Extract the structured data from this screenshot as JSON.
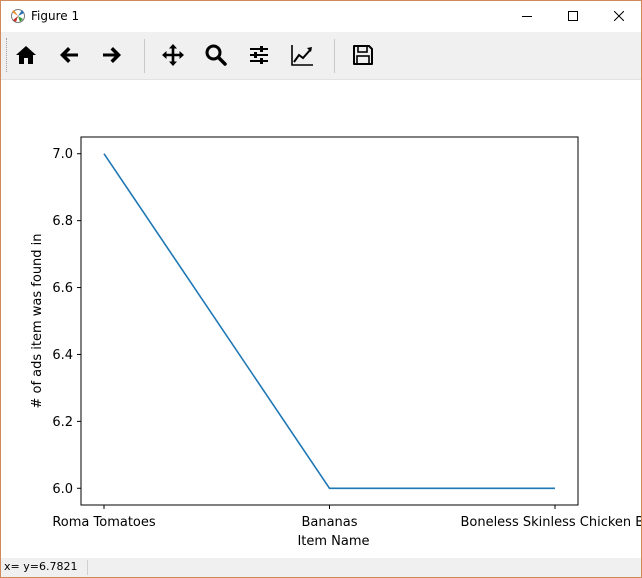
{
  "window": {
    "title": "Figure 1"
  },
  "toolbar": {
    "buttons": [
      {
        "name": "home",
        "icon": "home-icon"
      },
      {
        "name": "back",
        "icon": "arrow-left-icon"
      },
      {
        "name": "forward",
        "icon": "arrow-right-icon"
      },
      {
        "name": "pan",
        "icon": "move-icon"
      },
      {
        "name": "zoom",
        "icon": "magnifier-icon"
      },
      {
        "name": "subplots",
        "icon": "sliders-icon"
      },
      {
        "name": "customize",
        "icon": "line-chart-icon"
      },
      {
        "name": "save",
        "icon": "floppy-disk-icon"
      }
    ]
  },
  "status": {
    "text": "x= y=6.7821"
  },
  "colors": {
    "line": "#1f77b4",
    "window_border": "#d08a5a",
    "toolbar_bg": "#f0f0f0"
  },
  "chart_data": {
    "type": "line",
    "categories": [
      "Roma Tomatoes",
      "Bananas",
      "Boneless Skinless Chicken Br"
    ],
    "series": [
      {
        "values": [
          7.0,
          6.0,
          6.0
        ]
      }
    ],
    "xlabel": "Item Name",
    "ylabel": "# of ads item was found in",
    "ylim": [
      5.95,
      7.05
    ],
    "yticks": [
      6.0,
      6.2,
      6.4,
      6.6,
      6.8,
      7.0
    ],
    "ytick_labels": [
      "6.0",
      "6.2",
      "6.4",
      "6.6",
      "6.8",
      "7.0"
    ],
    "grid": false,
    "legend": "none"
  }
}
